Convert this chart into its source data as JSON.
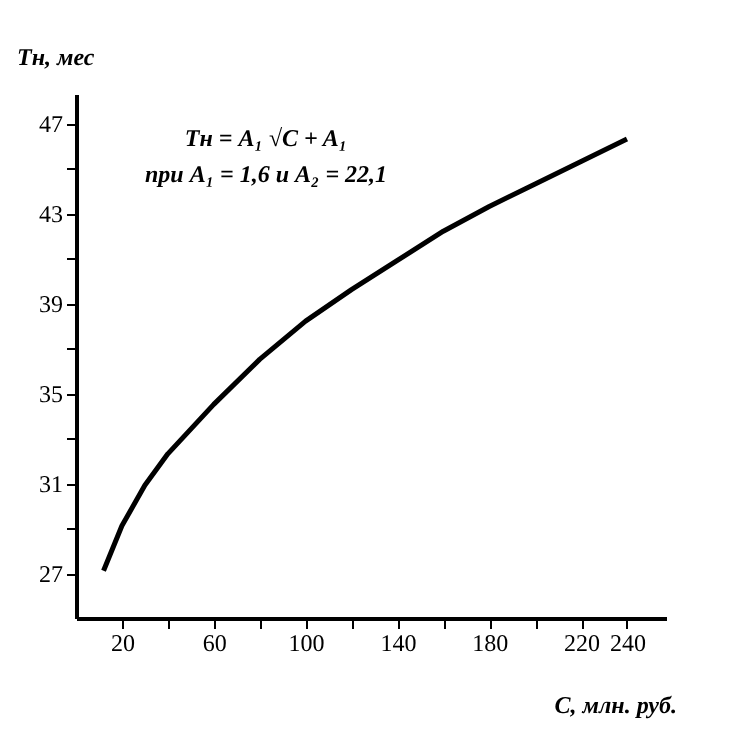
{
  "chart_data": {
    "type": "line",
    "xlabel": "C, млн. руб.",
    "ylabel": "Tн, мес",
    "annotations": [
      "Tн = A₁ √C + A₁",
      "при A₁ = 1,6 и A₂ = 22,1"
    ],
    "x": [
      12,
      20,
      30,
      40,
      60,
      80,
      100,
      120,
      140,
      160,
      180,
      200,
      220,
      240
    ],
    "series": [
      {
        "color": "#000000",
        "values": [
          27.1,
          29.1,
          30.9,
          32.3,
          34.5,
          36.5,
          38.2,
          39.6,
          40.9,
          42.2,
          43.3,
          44.3,
          45.3,
          46.3
        ]
      }
    ],
    "xlim": [
      0,
      257
    ],
    "ylim": [
      25,
      48.3
    ],
    "xticks": [
      20,
      {
        "value": 40,
        "label": null
      },
      60,
      {
        "value": 80,
        "label": null
      },
      100,
      {
        "value": 120,
        "label": null
      },
      140,
      {
        "value": 160,
        "label": null
      },
      180,
      {
        "value": 200,
        "label": null
      },
      220,
      240
    ],
    "yticks": [
      27,
      {
        "value": 29,
        "label": null
      },
      31,
      {
        "value": 33,
        "label": null
      },
      35,
      {
        "value": 37,
        "label": null
      },
      39,
      {
        "value": 41,
        "label": null
      },
      43,
      {
        "value": 45,
        "label": null
      },
      47
    ],
    "grid": false,
    "marker": "none",
    "line_style": "solid"
  }
}
